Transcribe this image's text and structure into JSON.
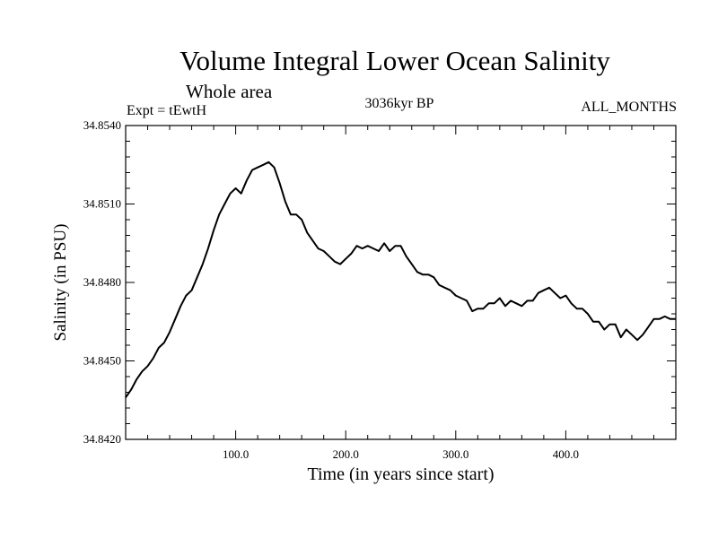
{
  "chart_data": {
    "type": "line",
    "title": "Volume Integral Lower Ocean Salinity",
    "subtitle": "Whole area",
    "left_label": "Expt = tEwtH",
    "center_label": "3036kyr BP",
    "right_label": "ALL_MONTHS",
    "xlabel": "Time (in years since start)",
    "ylabel": "Salinity (in PSU)",
    "xlim": [
      0,
      500
    ],
    "ylim": [
      34.842,
      34.854
    ],
    "x_ticks": [
      {
        "value": 100,
        "label": "100.0"
      },
      {
        "value": 200,
        "label": "200.0"
      },
      {
        "value": 300,
        "label": "300.0"
      },
      {
        "value": 400,
        "label": "400.0"
      }
    ],
    "y_ticks": [
      {
        "value": 34.842,
        "label": "34.8420"
      },
      {
        "value": 34.845,
        "label": "34.8450"
      },
      {
        "value": 34.848,
        "label": "34.8480"
      },
      {
        "value": 34.851,
        "label": "34.8510"
      },
      {
        "value": 34.854,
        "label": "34.8540"
      }
    ],
    "series": [
      {
        "name": "salinity",
        "x": [
          0,
          5,
          10,
          15,
          20,
          25,
          30,
          35,
          40,
          45,
          50,
          55,
          60,
          65,
          70,
          75,
          80,
          85,
          90,
          95,
          100,
          105,
          110,
          115,
          120,
          125,
          130,
          135,
          140,
          145,
          150,
          155,
          160,
          165,
          170,
          175,
          180,
          185,
          190,
          195,
          200,
          205,
          210,
          215,
          220,
          225,
          230,
          235,
          240,
          245,
          250,
          255,
          260,
          265,
          270,
          275,
          280,
          285,
          290,
          295,
          300,
          305,
          310,
          315,
          320,
          325,
          330,
          335,
          340,
          345,
          350,
          355,
          360,
          365,
          370,
          375,
          380,
          385,
          390,
          395,
          400,
          405,
          410,
          415,
          420,
          425,
          430,
          435,
          440,
          445,
          450,
          455,
          460,
          465,
          470,
          475,
          480,
          485,
          490,
          495,
          500
        ],
        "values": [
          34.8436,
          34.8439,
          34.8443,
          34.8446,
          34.8448,
          34.8451,
          34.8455,
          34.8457,
          34.8461,
          34.8466,
          34.8471,
          34.8475,
          34.8477,
          34.8482,
          34.8487,
          34.8493,
          34.85,
          34.8506,
          34.851,
          34.8514,
          34.8516,
          34.8514,
          34.8519,
          34.8523,
          34.8524,
          34.8525,
          34.8526,
          34.8524,
          34.8518,
          34.8511,
          34.8506,
          34.8506,
          34.8504,
          34.8499,
          34.8496,
          34.8493,
          34.8492,
          34.849,
          34.8488,
          34.8487,
          34.8489,
          34.8491,
          34.8494,
          34.8493,
          34.8494,
          34.8493,
          34.8492,
          34.8495,
          34.8492,
          34.8494,
          34.8494,
          34.849,
          34.8487,
          34.8484,
          34.8483,
          34.8483,
          34.8482,
          34.8479,
          34.8478,
          34.8477,
          34.8475,
          34.8474,
          34.8473,
          34.8469,
          34.847,
          34.847,
          34.8472,
          34.8472,
          34.8474,
          34.8471,
          34.8473,
          34.8472,
          34.8471,
          34.8473,
          34.8473,
          34.8476,
          34.8477,
          34.8478,
          34.8476,
          34.8474,
          34.8475,
          34.8472,
          34.847,
          34.847,
          34.8468,
          34.8465,
          34.8465,
          34.8462,
          34.8464,
          34.8464,
          34.8459,
          34.8462,
          34.846,
          34.8458,
          34.846,
          34.8463,
          34.8466,
          34.8466,
          34.8467,
          34.8466,
          34.8466
        ]
      }
    ]
  }
}
